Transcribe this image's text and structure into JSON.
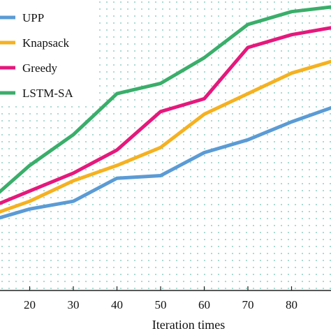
{
  "chart_data": {
    "type": "line",
    "title": "",
    "xlabel": "Iteration times",
    "ylabel": "",
    "xlim": [
      10,
      90
    ],
    "ylim": [
      0,
      1
    ],
    "x_ticks": [
      20,
      30,
      40,
      50,
      60,
      70,
      80
    ],
    "x_tick_labels": [
      "20",
      "30",
      "40",
      "50",
      "60",
      "70",
      "80"
    ],
    "grid": false,
    "background_pattern": "dotted",
    "legend_position": "top-left",
    "x": [
      10,
      20,
      30,
      40,
      50,
      60,
      70,
      80,
      90
    ],
    "series": [
      {
        "name": "UPP",
        "color": "#5b9bd5",
        "values": [
          0.2,
          0.25,
          0.28,
          0.37,
          0.38,
          0.47,
          0.52,
          0.59,
          0.65
        ]
      },
      {
        "name": "Knapsack",
        "color": "#f5b120",
        "values": [
          0.22,
          0.28,
          0.36,
          0.42,
          0.49,
          0.62,
          0.7,
          0.78,
          0.83
        ]
      },
      {
        "name": "Greedy",
        "color": "#e5187c",
        "values": [
          0.25,
          0.32,
          0.39,
          0.48,
          0.63,
          0.68,
          0.88,
          0.93,
          0.96
        ]
      },
      {
        "name": "LSTM-SA",
        "color": "#3aae6a",
        "values": [
          0.27,
          0.42,
          0.54,
          0.7,
          0.74,
          0.84,
          0.97,
          1.02,
          1.04
        ]
      }
    ]
  }
}
